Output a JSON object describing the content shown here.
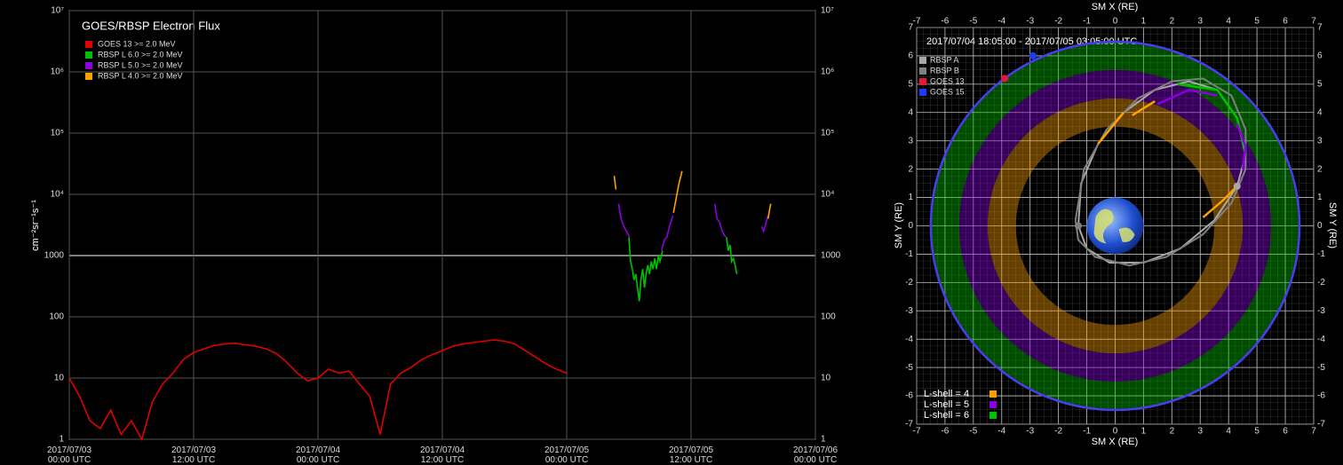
{
  "chart_data": [
    {
      "type": "line",
      "title": "GOES/RBSP Electron Flux",
      "y_label": "cm⁻²sr⁻¹s⁻¹",
      "log_y": true,
      "grid": true,
      "xlim": [
        "2017-07-03T00:00",
        "2017-07-06T00:00"
      ],
      "xticks": [
        {
          "value": "2017-07-03T00:00",
          "label": "2017/07/03\n00:00 UTC"
        },
        {
          "value": "2017-07-03T12:00",
          "label": "2017/07/03\n12:00 UTC"
        },
        {
          "value": "2017-07-04T00:00",
          "label": "2017/07/04\n00:00 UTC"
        },
        {
          "value": "2017-07-04T12:00",
          "label": "2017/07/04\n12:00 UTC"
        },
        {
          "value": "2017-07-05T00:00",
          "label": "2017/07/05\n00:00 UTC"
        },
        {
          "value": "2017-07-05T12:00",
          "label": "2017/07/05\n12:00 UTC"
        },
        {
          "value": "2017-07-06T00:00",
          "label": "2017/07/06\n00:00 UTC"
        }
      ],
      "ylim": [
        1,
        10000000
      ],
      "yticks": [
        1,
        10,
        100,
        1000,
        {
          "value": 10000,
          "label": "10⁴"
        },
        {
          "value": 100000,
          "label": "10⁵"
        },
        {
          "value": 1000000,
          "label": "10⁶"
        },
        {
          "value": 10000000,
          "label": "10⁷"
        }
      ],
      "series": [
        {
          "name": "GOES 13 >= 2.0 MeV",
          "color": "#e00000",
          "x": [
            "2017-07-03T00:00",
            "2017-07-03T01:00",
            "2017-07-03T02:00",
            "2017-07-03T03:00",
            "2017-07-03T04:00",
            "2017-07-03T05:00",
            "2017-07-03T06:00",
            "2017-07-03T07:00",
            "2017-07-03T08:00",
            "2017-07-03T09:00",
            "2017-07-03T10:00",
            "2017-07-03T11:00",
            "2017-07-03T12:00",
            "2017-07-03T13:00",
            "2017-07-03T14:00",
            "2017-07-03T15:00",
            "2017-07-03T16:00",
            "2017-07-03T17:00",
            "2017-07-03T18:00",
            "2017-07-03T19:00",
            "2017-07-03T20:00",
            "2017-07-03T21:00",
            "2017-07-03T22:00",
            "2017-07-03T23:00",
            "2017-07-04T00:00",
            "2017-07-04T01:00",
            "2017-07-04T02:00",
            "2017-07-04T03:00",
            "2017-07-04T04:00",
            "2017-07-04T05:00",
            "2017-07-04T06:00",
            "2017-07-04T07:00",
            "2017-07-04T08:00",
            "2017-07-04T09:00",
            "2017-07-04T10:00",
            "2017-07-04T11:00",
            "2017-07-04T12:00",
            "2017-07-04T13:00",
            "2017-07-04T14:00",
            "2017-07-04T15:00",
            "2017-07-04T16:00",
            "2017-07-04T17:00",
            "2017-07-04T18:00",
            "2017-07-04T19:00",
            "2017-07-04T20:00",
            "2017-07-04T21:00",
            "2017-07-04T22:00",
            "2017-07-04T23:00",
            "2017-07-05T00:00"
          ],
          "values": [
            10,
            5,
            2,
            1.5,
            3,
            1.2,
            2,
            1,
            4,
            8,
            12,
            20,
            26,
            30,
            34,
            36,
            37,
            35,
            33,
            30,
            25,
            18,
            12,
            9,
            10,
            14,
            12,
            13,
            8,
            5,
            1.2,
            8,
            12,
            15,
            20,
            24,
            28,
            33,
            36,
            38,
            40,
            42,
            40,
            36,
            28,
            22,
            17,
            14,
            12
          ]
        },
        {
          "name": "RBSP L 6.0 >= 2.0 MeV",
          "color": "#00c000",
          "x": [
            "2017-07-05T06:00",
            "2017-07-05T06:10",
            "2017-07-05T06:20",
            "2017-07-05T06:30",
            "2017-07-05T06:40",
            "2017-07-05T06:50",
            "2017-07-05T07:00",
            "2017-07-05T07:10",
            "2017-07-05T07:20",
            "2017-07-05T07:30",
            "2017-07-05T07:40",
            "2017-07-05T07:50",
            "2017-07-05T08:00",
            "2017-07-05T08:10",
            "2017-07-05T08:20",
            "2017-07-05T08:30",
            "2017-07-05T08:40",
            "2017-07-05T08:50",
            "2017-07-05T09:00",
            "2017-07-05T09:15",
            "2017-07-05T12:00",
            "2017-07-05T15:25",
            "2017-07-05T15:35",
            "2017-07-05T15:45",
            "2017-07-05T15:55",
            "2017-07-05T16:05",
            "2017-07-05T16:15",
            "2017-07-05T16:25"
          ],
          "values": [
            2000,
            800,
            600,
            400,
            500,
            300,
            180,
            400,
            600,
            300,
            500,
            700,
            500,
            800,
            600,
            900,
            600,
            1000,
            800,
            1200,
            null,
            2000,
            1200,
            1500,
            800,
            900,
            700,
            500
          ]
        },
        {
          "name": "RBSP L 5.0 >= 2.0 MeV",
          "color": "#8a00e0",
          "x": [
            "2017-07-05T05:00",
            "2017-07-05T05:15",
            "2017-07-05T05:30",
            "2017-07-05T05:45",
            "2017-07-05T06:05",
            "2017-07-05T07:30",
            "2017-07-05T09:10",
            "2017-07-05T09:25",
            "2017-07-05T09:40",
            "2017-07-05T09:55",
            "2017-07-05T10:15",
            "2017-07-05T12:00",
            "2017-07-05T14:18",
            "2017-07-05T14:30",
            "2017-07-05T14:45",
            "2017-07-05T15:00",
            "2017-07-05T15:20",
            "2017-07-05T17:00",
            "2017-07-05T18:50",
            "2017-07-05T19:00",
            "2017-07-05T19:15",
            "2017-07-05T19:25"
          ],
          "values": [
            7000,
            4000,
            3000,
            2500,
            2000,
            null,
            1200,
            1800,
            2000,
            3000,
            4500,
            null,
            7000,
            4000,
            3500,
            2500,
            2000,
            null,
            3000,
            2500,
            3500,
            4500
          ]
        },
        {
          "name": "RBSP L 4.0 >= 2.0 MeV",
          "color": "#ffa000",
          "x": [
            "2017-07-05T04:35",
            "2017-07-05T04:45",
            "2017-07-05T07:00",
            "2017-07-05T10:18",
            "2017-07-05T10:35",
            "2017-07-05T10:50",
            "2017-07-05T11:08",
            "2017-07-05T15:00",
            "2017-07-05T19:26",
            "2017-07-05T19:34",
            "2017-07-05T19:42"
          ],
          "values": [
            20000,
            12000,
            null,
            5000,
            9000,
            15000,
            24000,
            null,
            4000,
            5500,
            7000
          ]
        }
      ]
    },
    {
      "type": "orbit",
      "title": "2017/07/04 18:05:00 - 2017/07/05 03:05:00 UTC",
      "x_label": "SM X (RE)",
      "y_label": "SM Y (RE)",
      "grid": true,
      "xlim": [
        -7,
        7
      ],
      "ylim": [
        -7,
        7
      ],
      "xticks": [
        -7,
        -6,
        -5,
        -4,
        -3,
        -2,
        -1,
        0,
        1,
        2,
        3,
        4,
        5,
        6,
        7
      ],
      "yticks": [
        -7,
        -6,
        -5,
        -4,
        -3,
        -2,
        -1,
        0,
        1,
        2,
        3,
        4,
        5,
        6,
        7
      ],
      "lshells": [
        {
          "label": "L-shell = 4",
          "L": 4,
          "color": "#ffa000"
        },
        {
          "label": "L-shell = 5",
          "L": 5,
          "color": "#8a00e0"
        },
        {
          "label": "L-shell = 6",
          "L": 6,
          "color": "#00c000"
        }
      ],
      "satellites": [
        {
          "name": "RBSP A",
          "color": "#a8a8a8",
          "x": 4.3,
          "y": 1.4,
          "orbit_x": [
            -1.3,
            -1.2,
            -0.6,
            0.3,
            1.4,
            2.6,
            3.6,
            4.3,
            4.6,
            4.3,
            3.5,
            2.3,
            1,
            -0.2,
            -1,
            -1.3
          ],
          "orbit_y": [
            0,
            1.5,
            2.9,
            4.0,
            4.8,
            5.1,
            4.8,
            3.8,
            2.5,
            1.4,
            0.2,
            -0.8,
            -1.3,
            -1.3,
            -0.8,
            0
          ]
        },
        {
          "name": "RBSP B",
          "color": "#808080",
          "x": -1.3,
          "y": 0,
          "orbit_x": [
            -1.4,
            -1.1,
            -0.3,
            0.8,
            2,
            3.1,
            4.1,
            4.6,
            4.6,
            4.1,
            3.1,
            1.8,
            0.5,
            -0.7,
            -1.3,
            -1.4
          ],
          "orbit_y": [
            0.2,
            2,
            3.4,
            4.5,
            5.1,
            5.2,
            4.6,
            3.4,
            2,
            0.8,
            -0.3,
            -1.1,
            -1.4,
            -1.1,
            -0.5,
            0.2
          ]
        },
        {
          "name": "GOES 13",
          "color": "#e8173a",
          "x": -3.9,
          "y": 5.2
        },
        {
          "name": "GOES 15",
          "color": "#1a3cff",
          "x": -2.9,
          "y": 6.0
        }
      ],
      "segments": [
        {
          "color": "#ffa000",
          "x": [
            -0.6,
            0.3
          ],
          "y": [
            2.9,
            4.0
          ]
        },
        {
          "color": "#ffa000",
          "x": [
            0.6,
            1.4
          ],
          "y": [
            3.9,
            4.4
          ]
        },
        {
          "color": "#8a00e0",
          "x": [
            1.5,
            2.6,
            3.6
          ],
          "y": [
            4.3,
            4.8,
            4.6
          ]
        },
        {
          "color": "#00c000",
          "x": [
            2.2,
            3.6,
            4.3,
            4.6
          ],
          "y": [
            5.0,
            4.8,
            3.8,
            2.5
          ]
        },
        {
          "color": "#8a00e0",
          "x": [
            4.3,
            4.6,
            4.5
          ],
          "y": [
            3.6,
            2.8,
            2.0
          ]
        },
        {
          "color": "#ffa000",
          "x": [
            3.1,
            3.8,
            4.3
          ],
          "y": [
            0.3,
            0.9,
            1.4
          ]
        }
      ]
    }
  ]
}
